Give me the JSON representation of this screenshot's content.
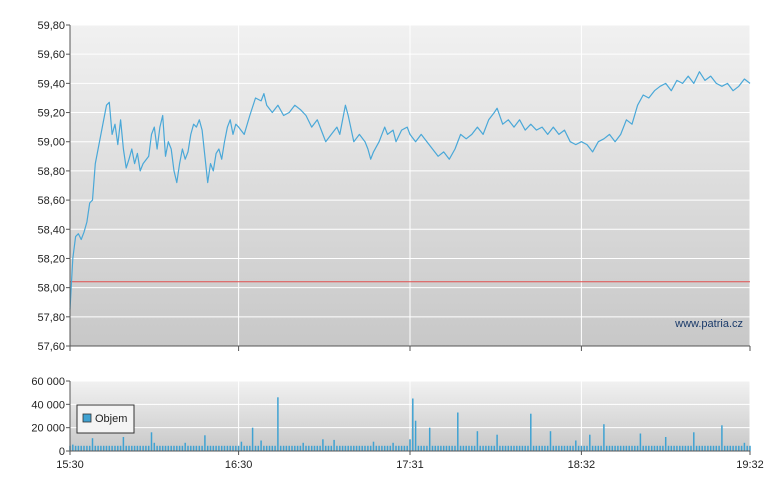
{
  "colors": {
    "line": "#4aa8d8",
    "reference_line": "#e05050",
    "volume": "#3fa2d2",
    "grid": "#ffffff",
    "plot_bg_top": "#f1f1f1",
    "plot_bg_bottom": "#c8c8c8",
    "axis": "#555555"
  },
  "watermark": "www.patria.cz",
  "chart_data": [
    {
      "type": "line",
      "title": "",
      "xlabel": "",
      "ylabel": "",
      "x_ticks": [
        "15:30",
        "16:30",
        "17:31",
        "18:32",
        "19:32"
      ],
      "y_ticks": [
        "57,60",
        "57,80",
        "58,00",
        "58,20",
        "58,40",
        "58,60",
        "58,80",
        "59,00",
        "59,20",
        "59,40",
        "59,60",
        "59,80"
      ],
      "ylim": [
        57.6,
        59.8
      ],
      "xlim": [
        "15:30",
        "19:32"
      ],
      "grid": true,
      "reference_line": 58.04,
      "series": [
        {
          "points": [
            [
              "15:30",
              57.85
            ],
            [
              "15:31",
              58.2
            ],
            [
              "15:32",
              58.35
            ],
            [
              "15:33",
              58.37
            ],
            [
              "15:34",
              58.33
            ],
            [
              "15:35",
              58.38
            ],
            [
              "15:36",
              58.45
            ],
            [
              "15:37",
              58.58
            ],
            [
              "15:38",
              58.6
            ],
            [
              "15:39",
              58.85
            ],
            [
              "15:40",
              58.95
            ],
            [
              "15:41",
              59.05
            ],
            [
              "15:42",
              59.15
            ],
            [
              "15:43",
              59.25
            ],
            [
              "15:44",
              59.27
            ],
            [
              "15:45",
              59.05
            ],
            [
              "15:46",
              59.12
            ],
            [
              "15:47",
              58.98
            ],
            [
              "15:48",
              59.15
            ],
            [
              "15:49",
              58.95
            ],
            [
              "15:50",
              58.82
            ],
            [
              "15:51",
              58.88
            ],
            [
              "15:52",
              58.95
            ],
            [
              "15:53",
              58.85
            ],
            [
              "15:54",
              58.92
            ],
            [
              "15:55",
              58.8
            ],
            [
              "15:56",
              58.85
            ],
            [
              "15:58",
              58.9
            ],
            [
              "15:59",
              59.05
            ],
            [
              "16:00",
              59.1
            ],
            [
              "16:01",
              58.95
            ],
            [
              "16:02",
              59.1
            ],
            [
              "16:03",
              59.18
            ],
            [
              "16:04",
              58.9
            ],
            [
              "16:05",
              59.0
            ],
            [
              "16:06",
              58.95
            ],
            [
              "16:07",
              58.8
            ],
            [
              "16:08",
              58.72
            ],
            [
              "16:09",
              58.85
            ],
            [
              "16:10",
              58.95
            ],
            [
              "16:11",
              58.88
            ],
            [
              "16:12",
              58.93
            ],
            [
              "16:13",
              59.05
            ],
            [
              "16:14",
              59.12
            ],
            [
              "16:15",
              59.1
            ],
            [
              "16:16",
              59.15
            ],
            [
              "16:17",
              59.08
            ],
            [
              "16:18",
              58.9
            ],
            [
              "16:19",
              58.72
            ],
            [
              "16:20",
              58.85
            ],
            [
              "16:21",
              58.8
            ],
            [
              "16:22",
              58.92
            ],
            [
              "16:23",
              58.95
            ],
            [
              "16:24",
              58.88
            ],
            [
              "16:25",
              59.0
            ],
            [
              "16:26",
              59.1
            ],
            [
              "16:27",
              59.15
            ],
            [
              "16:28",
              59.05
            ],
            [
              "16:29",
              59.12
            ],
            [
              "16:30",
              59.1
            ],
            [
              "16:32",
              59.05
            ],
            [
              "16:34",
              59.18
            ],
            [
              "16:36",
              59.3
            ],
            [
              "16:38",
              59.28
            ],
            [
              "16:39",
              59.33
            ],
            [
              "16:40",
              59.25
            ],
            [
              "16:42",
              59.2
            ],
            [
              "16:44",
              59.25
            ],
            [
              "16:46",
              59.18
            ],
            [
              "16:48",
              59.2
            ],
            [
              "16:50",
              59.25
            ],
            [
              "16:52",
              59.22
            ],
            [
              "16:54",
              59.18
            ],
            [
              "16:56",
              59.1
            ],
            [
              "16:58",
              59.15
            ],
            [
              "17:00",
              59.05
            ],
            [
              "17:01",
              59.0
            ],
            [
              "17:03",
              59.05
            ],
            [
              "17:05",
              59.1
            ],
            [
              "17:06",
              59.05
            ],
            [
              "17:08",
              59.25
            ],
            [
              "17:09",
              59.18
            ],
            [
              "17:11",
              59.0
            ],
            [
              "17:13",
              59.05
            ],
            [
              "17:15",
              59.0
            ],
            [
              "17:16",
              58.95
            ],
            [
              "17:17",
              58.88
            ],
            [
              "17:18",
              58.93
            ],
            [
              "17:20",
              59.0
            ],
            [
              "17:22",
              59.1
            ],
            [
              "17:23",
              59.05
            ],
            [
              "17:25",
              59.08
            ],
            [
              "17:26",
              59.0
            ],
            [
              "17:28",
              59.08
            ],
            [
              "17:30",
              59.1
            ],
            [
              "17:31",
              59.05
            ],
            [
              "17:33",
              59.0
            ],
            [
              "17:35",
              59.05
            ],
            [
              "17:37",
              59.0
            ],
            [
              "17:39",
              58.95
            ],
            [
              "17:41",
              58.9
            ],
            [
              "17:43",
              58.93
            ],
            [
              "17:45",
              58.88
            ],
            [
              "17:47",
              58.95
            ],
            [
              "17:49",
              59.05
            ],
            [
              "17:51",
              59.02
            ],
            [
              "17:53",
              59.05
            ],
            [
              "17:55",
              59.1
            ],
            [
              "17:57",
              59.05
            ],
            [
              "17:59",
              59.15
            ],
            [
              "18:01",
              59.2
            ],
            [
              "18:02",
              59.23
            ],
            [
              "18:04",
              59.12
            ],
            [
              "18:06",
              59.15
            ],
            [
              "18:08",
              59.1
            ],
            [
              "18:10",
              59.15
            ],
            [
              "18:12",
              59.08
            ],
            [
              "18:14",
              59.12
            ],
            [
              "18:16",
              59.08
            ],
            [
              "18:18",
              59.1
            ],
            [
              "18:20",
              59.05
            ],
            [
              "18:22",
              59.1
            ],
            [
              "18:24",
              59.05
            ],
            [
              "18:26",
              59.08
            ],
            [
              "18:28",
              59.0
            ],
            [
              "18:30",
              58.98
            ],
            [
              "18:32",
              59.0
            ],
            [
              "18:34",
              58.98
            ],
            [
              "18:36",
              58.93
            ],
            [
              "18:38",
              59.0
            ],
            [
              "18:40",
              59.02
            ],
            [
              "18:42",
              59.05
            ],
            [
              "18:44",
              59.0
            ],
            [
              "18:46",
              59.05
            ],
            [
              "18:48",
              59.15
            ],
            [
              "18:50",
              59.12
            ],
            [
              "18:52",
              59.25
            ],
            [
              "18:54",
              59.32
            ],
            [
              "18:56",
              59.3
            ],
            [
              "18:58",
              59.35
            ],
            [
              "19:00",
              59.38
            ],
            [
              "19:02",
              59.4
            ],
            [
              "19:04",
              59.35
            ],
            [
              "19:06",
              59.42
            ],
            [
              "19:08",
              59.4
            ],
            [
              "19:10",
              59.45
            ],
            [
              "19:12",
              59.4
            ],
            [
              "19:14",
              59.48
            ],
            [
              "19:16",
              59.42
            ],
            [
              "19:18",
              59.45
            ],
            [
              "19:20",
              59.4
            ],
            [
              "19:22",
              59.38
            ],
            [
              "19:24",
              59.4
            ],
            [
              "19:26",
              59.35
            ],
            [
              "19:28",
              59.38
            ],
            [
              "19:30",
              59.43
            ],
            [
              "19:32",
              59.4
            ]
          ]
        }
      ]
    },
    {
      "type": "bar",
      "title": "",
      "xlabel": "",
      "ylabel": "",
      "x_ticks": [
        "15:30",
        "16:30",
        "17:31",
        "18:32",
        "19:32"
      ],
      "y_ticks": [
        "0",
        "20 000",
        "40 000",
        "60 000"
      ],
      "ylim": [
        0,
        60000
      ],
      "legend": {
        "position": "top-left",
        "entries": [
          "Objem"
        ]
      },
      "series": [
        {
          "name": "Objem",
          "peaks": [
            [
              "15:31",
              5500
            ],
            [
              "15:38",
              11000
            ],
            [
              "15:49",
              12000
            ],
            [
              "15:59",
              16000
            ],
            [
              "16:00",
              7000
            ],
            [
              "16:11",
              7000
            ],
            [
              "16:18",
              13500
            ],
            [
              "16:31",
              8000
            ],
            [
              "16:35",
              20000
            ],
            [
              "16:38",
              9000
            ],
            [
              "16:44",
              46000
            ],
            [
              "16:53",
              7000
            ],
            [
              "17:00",
              10000
            ],
            [
              "17:04",
              9500
            ],
            [
              "17:18",
              8000
            ],
            [
              "17:25",
              7000
            ],
            [
              "17:31",
              10000
            ],
            [
              "17:32",
              45000
            ],
            [
              "17:33",
              26000
            ],
            [
              "17:38",
              20000
            ],
            [
              "17:48",
              33000
            ],
            [
              "17:55",
              17000
            ],
            [
              "18:02",
              14000
            ],
            [
              "18:14",
              32000
            ],
            [
              "18:21",
              17000
            ],
            [
              "18:30",
              9000
            ],
            [
              "18:35",
              14000
            ],
            [
              "18:40",
              23000
            ],
            [
              "18:53",
              15000
            ],
            [
              "19:02",
              12000
            ],
            [
              "19:12",
              16000
            ],
            [
              "19:22",
              22000
            ],
            [
              "19:30",
              7000
            ]
          ],
          "baseline": 4500
        }
      ]
    }
  ]
}
